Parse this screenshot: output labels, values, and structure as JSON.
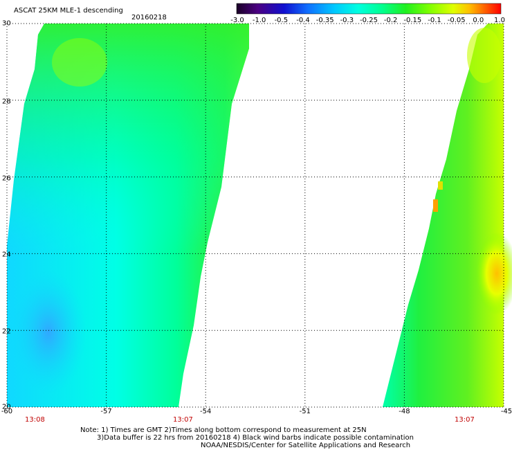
{
  "header": {
    "product": "ASCAT 25KM MLE-1 descending",
    "date": "20160218"
  },
  "colorbar": {
    "labels": [
      "-3.0",
      "-1.0",
      "-0.5",
      "-0.4",
      "-0.35",
      "-0.3",
      "-0.25",
      "-0.2",
      "-0.15",
      "-0.1",
      "-0.05",
      "0.0",
      "1.0"
    ],
    "colors": [
      "#1a0026",
      "#4b0082",
      "#1010d0",
      "#1070ff",
      "#00c8ff",
      "#00ffe0",
      "#00ff90",
      "#20f020",
      "#80ff00",
      "#e0ff00",
      "#ffc000",
      "#ff6000",
      "#ff0000"
    ]
  },
  "axes": {
    "x_ticks": [
      "-60",
      "-57",
      "-54",
      "-51",
      "-48",
      "-45"
    ],
    "y_ticks": [
      "30",
      "28",
      "26",
      "24",
      "22",
      "20"
    ],
    "time_left": "13:08",
    "time_mid": "13:07",
    "time_right": "13:07"
  },
  "notes": {
    "line1": "Note: 1) Times are GMT 2)Times along bottom correspond to measurement at 25N",
    "line2": "3)Data buffer is 22 hrs from 20160218 4) Black wind barbs indicate possible contamination",
    "line3": "NOAA/NESDIS/Center for Satellite Applications and Research"
  }
}
